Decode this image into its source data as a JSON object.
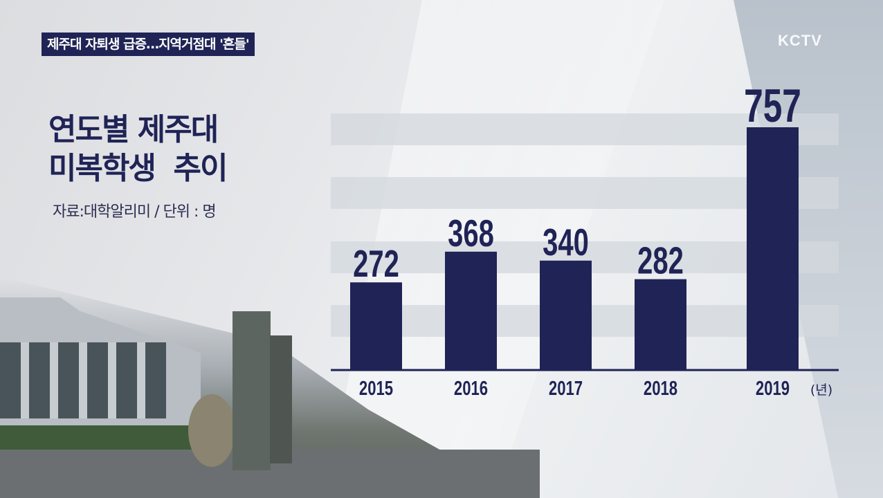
{
  "headline": "제주대 자퇴생 급증…지역거점대 '흔들'",
  "logo": "KCTV",
  "colors": {
    "bar": "#1f2355",
    "stripe": "#d3d8de",
    "headline_bg": "#1f2355"
  },
  "chart_data": {
    "type": "bar",
    "title_line1": "연도별 제주대",
    "title_line2": "미복학생  추이",
    "source_note": "자료:대학알리미 / 단위 : 명",
    "categories": [
      "2015",
      "2016",
      "2017",
      "2018",
      "2019"
    ],
    "values": [
      272,
      368,
      340,
      282,
      757
    ],
    "x_unit": "(년)",
    "ylim": [
      0,
      757
    ],
    "grid": "horizontal bands"
  }
}
